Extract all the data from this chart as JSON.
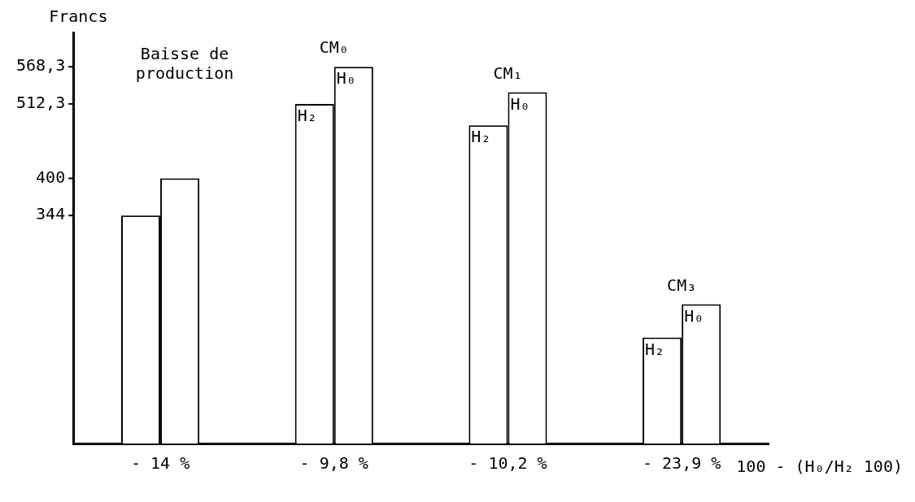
{
  "chart_data": {
    "type": "bar",
    "ylabel": "Francs",
    "xlabel": "100 - (H₀/H₂ 100)",
    "categories": [
      "- 14 %",
      "- 9,8 %",
      "- 10,2 %",
      "- 23,9 %"
    ],
    "series": [
      {
        "color": "#ffffff",
        "values": [
          344,
          512.3,
          480,
          160
        ]
      },
      {
        "color": "#ffffff",
        "values": [
          400,
          568.3,
          530,
          210
        ]
      }
    ],
    "ylim": [
      0,
      620
    ],
    "yticks": [
      344,
      400,
      {
        "value": 512.3,
        "label": "512,3"
      },
      {
        "value": 568.3,
        "label": "568,3"
      }
    ],
    "grid": false,
    "legend": false,
    "annotations": [
      "Baisse de production",
      {
        "text": "CM₀",
        "x": "- 9,8 %",
        "y": 568.3
      },
      {
        "text": "H₂",
        "x": "- 9,8 %",
        "y": 512.3
      },
      {
        "text": "H₀",
        "x": "- 9,8 %",
        "y": 568.3
      },
      {
        "text": "CM₁",
        "x": "- 10,2 %",
        "y": 530
      },
      {
        "text": "H₂",
        "x": "- 10,2 %",
        "y": 480
      },
      {
        "text": "H₀",
        "x": "- 10,2 %",
        "y": 530
      },
      {
        "text": "CM₃",
        "x": "- 23,9 %",
        "y": 210
      },
      {
        "text": "H₂",
        "x": "- 23,9 %",
        "y": 160
      },
      {
        "text": "H₀",
        "x": "- 23,9 %",
        "y": 210
      }
    ]
  }
}
